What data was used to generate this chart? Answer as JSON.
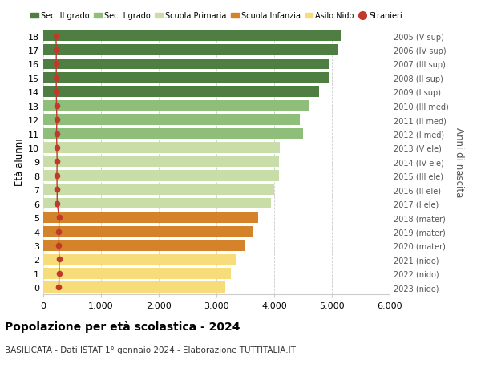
{
  "ages": [
    0,
    1,
    2,
    3,
    4,
    5,
    6,
    7,
    8,
    9,
    10,
    11,
    12,
    13,
    14,
    15,
    16,
    17,
    18
  ],
  "bar_values": [
    3150,
    3250,
    3350,
    3500,
    3620,
    3720,
    3950,
    4000,
    4080,
    4080,
    4100,
    4500,
    4450,
    4600,
    4780,
    4950,
    4950,
    5100,
    5150
  ],
  "stranieri": [
    270,
    275,
    275,
    270,
    270,
    275,
    240,
    240,
    235,
    240,
    235,
    230,
    235,
    230,
    225,
    225,
    225,
    225,
    220
  ],
  "right_labels": [
    "2023 (nido)",
    "2022 (nido)",
    "2021 (nido)",
    "2020 (mater)",
    "2019 (mater)",
    "2018 (mater)",
    "2017 (I ele)",
    "2016 (II ele)",
    "2015 (III ele)",
    "2014 (IV ele)",
    "2013 (V ele)",
    "2012 (I med)",
    "2011 (II med)",
    "2010 (III med)",
    "2009 (I sup)",
    "2008 (II sup)",
    "2007 (III sup)",
    "2006 (IV sup)",
    "2005 (V sup)"
  ],
  "bar_colors": [
    "#f7dc7a",
    "#f7dc7a",
    "#f7dc7a",
    "#d4832b",
    "#d4832b",
    "#d4832b",
    "#c8dda8",
    "#c8dda8",
    "#c8dda8",
    "#c8dda8",
    "#c8dda8",
    "#8fbd7a",
    "#8fbd7a",
    "#8fbd7a",
    "#4e7e42",
    "#4e7e42",
    "#4e7e42",
    "#4e7e42",
    "#4e7e42"
  ],
  "legend_labels": [
    "Sec. II grado",
    "Sec. I grado",
    "Scuola Primaria",
    "Scuola Infanzia",
    "Asilo Nido",
    "Stranieri"
  ],
  "legend_colors": [
    "#4e7e42",
    "#8fbd7a",
    "#c8dda8",
    "#d4832b",
    "#f7dc7a",
    "#c0392b"
  ],
  "ylabel": "Età alunni",
  "right_ylabel": "Anni di nascita",
  "title": "Popolazione per età scolastica - 2024",
  "subtitle": "BASILICATA - Dati ISTAT 1° gennaio 2024 - Elaborazione TUTTITALIA.IT",
  "xlim": [
    0,
    6000
  ],
  "xticks": [
    0,
    1000,
    2000,
    3000,
    4000,
    5000,
    6000
  ],
  "stranieri_color": "#c0392b",
  "bg_color": "#ffffff",
  "bar_height": 0.78,
  "grid_color": "#cccccc"
}
